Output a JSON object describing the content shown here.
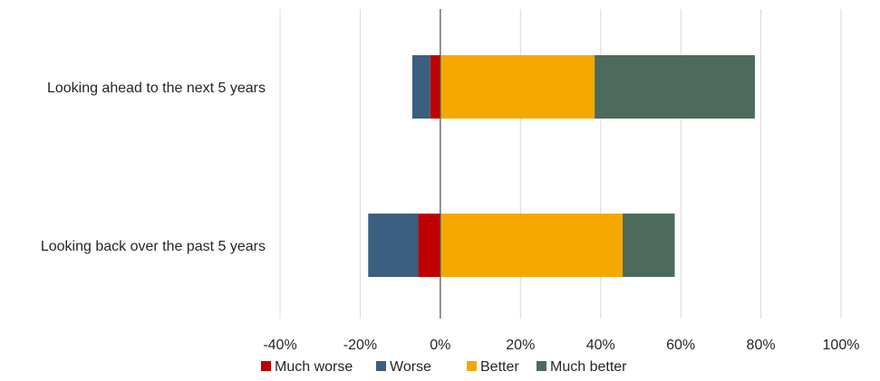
{
  "chart_data": {
    "type": "bar",
    "orientation": "horizontal",
    "stacking": "diverging",
    "categories": [
      "Looking ahead to the next 5 years",
      "Looking back over the past 5 years"
    ],
    "series": [
      {
        "name": "Much worse",
        "color": "#C00000",
        "values": [
          -2.5,
          -5.5
        ]
      },
      {
        "name": "Worse",
        "color": "#3B5F80",
        "values": [
          -4.5,
          -12.5
        ]
      },
      {
        "name": "Better",
        "color": "#F5A800",
        "values": [
          38.5,
          45.5
        ]
      },
      {
        "name": "Much better",
        "color": "#4D6B5C",
        "values": [
          40.0,
          13.0
        ]
      }
    ],
    "xlim": [
      -40,
      100
    ],
    "xticks": [
      -40,
      -20,
      0,
      20,
      40,
      60,
      80,
      100
    ],
    "xtick_labels": [
      "-40%",
      "-20%",
      "0%",
      "20%",
      "40%",
      "60%",
      "80%",
      "100%"
    ],
    "grid": true,
    "legend_position": "bottom"
  }
}
